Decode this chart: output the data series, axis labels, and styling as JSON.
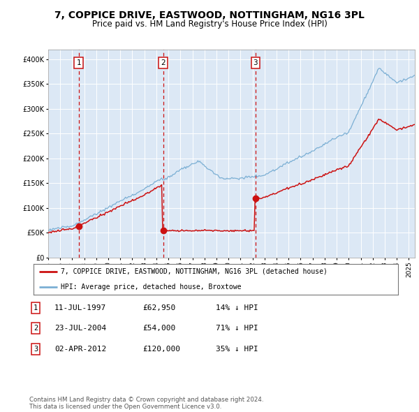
{
  "title": "7, COPPICE DRIVE, EASTWOOD, NOTTINGHAM, NG16 3PL",
  "subtitle": "Price paid vs. HM Land Registry's House Price Index (HPI)",
  "hpi_color": "#7bafd4",
  "sale_color": "#cc1111",
  "legend_sale": "7, COPPICE DRIVE, EASTWOOD, NOTTINGHAM, NG16 3PL (detached house)",
  "legend_hpi": "HPI: Average price, detached house, Broxtowe",
  "table_rows": [
    [
      "1",
      "11-JUL-1997",
      "£62,950",
      "14% ↓ HPI"
    ],
    [
      "2",
      "23-JUL-2004",
      "£54,000",
      "71% ↓ HPI"
    ],
    [
      "3",
      "02-APR-2012",
      "£120,000",
      "35% ↓ HPI"
    ]
  ],
  "footer": "Contains HM Land Registry data © Crown copyright and database right 2024.\nThis data is licensed under the Open Government Licence v3.0.",
  "ylim": [
    0,
    420000
  ],
  "yticks": [
    0,
    50000,
    100000,
    150000,
    200000,
    250000,
    300000,
    350000,
    400000
  ],
  "plot_bg_color": "#dce8f5",
  "sale_year1": 1997.54,
  "sale_year2": 2004.56,
  "sale_year3": 2012.25,
  "sale_price1": 62950,
  "sale_price2": 54000,
  "sale_price3": 120000
}
